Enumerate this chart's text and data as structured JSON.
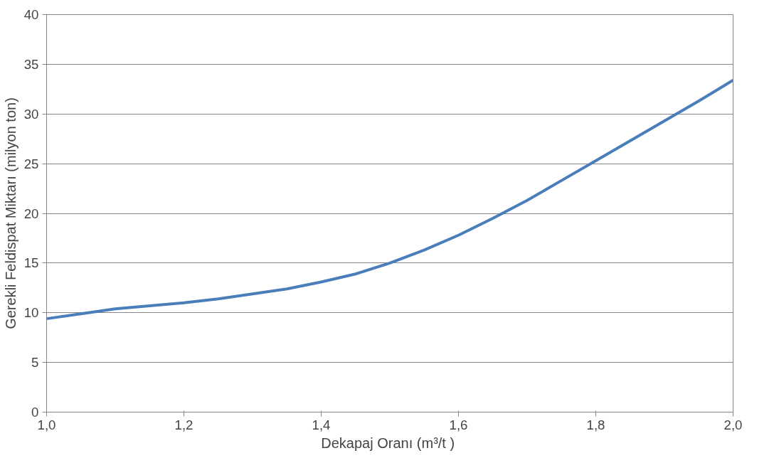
{
  "chart_data": {
    "type": "line",
    "xlabel": "Dekapaj  Oranı (m³/t )",
    "ylabel": "Gerekli Feldispat Miktarı (milyon ton)",
    "x": [
      1.0,
      1.05,
      1.1,
      1.15,
      1.2,
      1.25,
      1.3,
      1.35,
      1.4,
      1.45,
      1.5,
      1.55,
      1.6,
      1.65,
      1.7,
      1.75,
      1.8,
      1.85,
      1.9,
      1.95,
      2.0
    ],
    "series": [
      {
        "color": "#4a7ebb",
        "values": [
          9.4,
          9.9,
          10.4,
          10.7,
          11.0,
          11.4,
          11.9,
          12.4,
          13.1,
          13.9,
          15.0,
          16.3,
          17.8,
          19.5,
          21.3,
          23.3,
          25.3,
          27.3,
          29.3,
          31.3,
          33.4
        ]
      }
    ],
    "xlim": [
      1.0,
      2.0
    ],
    "ylim": [
      0,
      40
    ],
    "xticks": [
      {
        "value": 1.0,
        "label": "1,0"
      },
      {
        "value": 1.2,
        "label": "1,2"
      },
      {
        "value": 1.4,
        "label": "1,4"
      },
      {
        "value": 1.6,
        "label": "1,6"
      },
      {
        "value": 1.8,
        "label": "1,8"
      },
      {
        "value": 2.0,
        "label": "2,0"
      }
    ],
    "yticks": [
      0,
      5,
      10,
      15,
      20,
      25,
      30,
      35,
      40
    ],
    "grid": "y",
    "marker": "none",
    "line_style": "solid"
  }
}
